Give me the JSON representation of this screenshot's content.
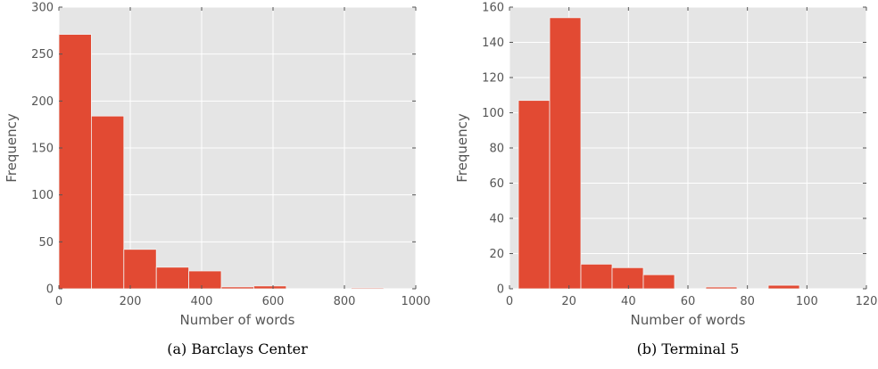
{
  "chart_data": [
    {
      "type": "bar",
      "caption": "(a) Barclays Center",
      "xlabel": "Number of words",
      "ylabel": "Frequency",
      "xlim": [
        0,
        1000
      ],
      "ylim": [
        0,
        300
      ],
      "xticks": [
        "0",
        "200",
        "400",
        "600",
        "800",
        "1000"
      ],
      "yticks": [
        "0",
        "50",
        "100",
        "150",
        "200",
        "250",
        "300"
      ],
      "grid": true,
      "bin_edges": [
        0,
        91,
        182,
        273,
        364,
        455,
        546,
        637,
        728,
        819,
        910
      ],
      "values": [
        271,
        184,
        42,
        23,
        19,
        2,
        3,
        0,
        0,
        1
      ]
    },
    {
      "type": "bar",
      "caption": "(b) Terminal 5",
      "xlabel": "Number of words",
      "ylabel": "Frequency",
      "xlim": [
        0,
        120
      ],
      "ylim": [
        0,
        160
      ],
      "xticks": [
        "0",
        "20",
        "40",
        "60",
        "80",
        "100",
        "120"
      ],
      "yticks": [
        "0",
        "20",
        "40",
        "60",
        "80",
        "100",
        "120",
        "140",
        "160"
      ],
      "grid": true,
      "bin_edges": [
        3,
        13.5,
        24,
        34.5,
        45,
        55.5,
        66,
        76.5,
        87,
        97.5,
        108,
        118.5
      ],
      "values": [
        107,
        154,
        14,
        12,
        8,
        0,
        1,
        0,
        2,
        0,
        0
      ]
    }
  ],
  "colors": {
    "bar": "#E24A33",
    "plot_bg": "#E5E5E5",
    "grid": "#FFFFFF"
  }
}
